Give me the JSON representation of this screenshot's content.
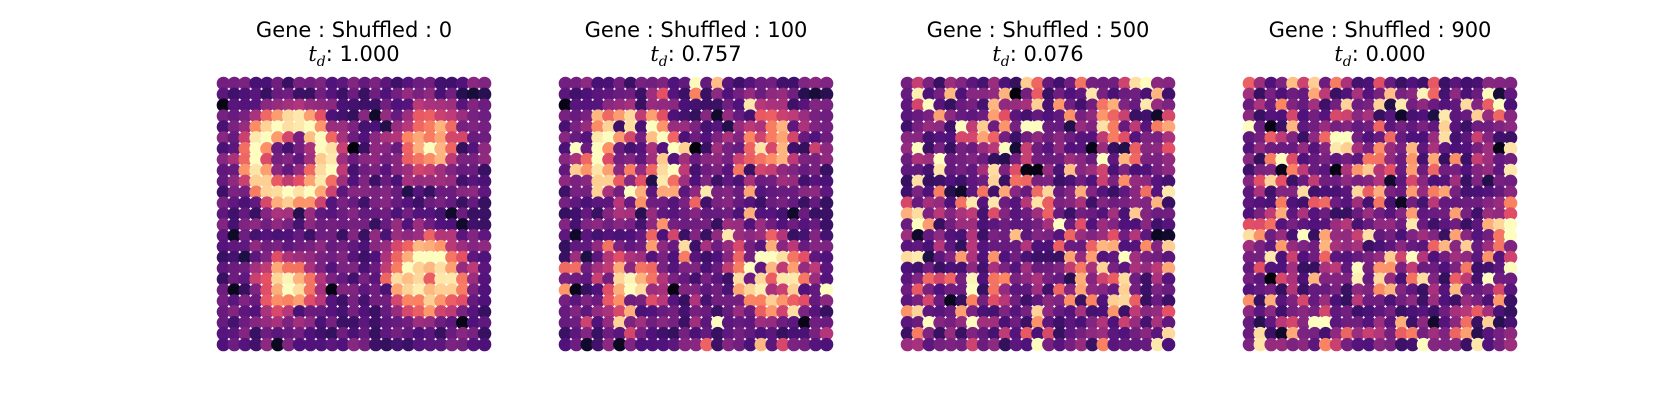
{
  "chart_data": [
    {
      "type": "scatter",
      "title": "Gene : Shuffled : 0",
      "td_label": "t",
      "td_sub": "d",
      "td_value": ": 1.000",
      "shuffled": 0,
      "grid_size": 25,
      "colormap": "magma"
    },
    {
      "type": "scatter",
      "title": "Gene : Shuffled : 100",
      "td_label": "t",
      "td_sub": "d",
      "td_value": ": 0.757",
      "shuffled": 100,
      "grid_size": 25,
      "colormap": "magma"
    },
    {
      "type": "scatter",
      "title": "Gene : Shuffled : 500",
      "td_label": "t",
      "td_sub": "d",
      "td_value": ": 0.076",
      "shuffled": 500,
      "grid_size": 25,
      "colormap": "magma"
    },
    {
      "type": "scatter",
      "title": "Gene : Shuffled : 900",
      "td_label": "t",
      "td_sub": "d",
      "td_value": ": 0.000",
      "shuffled": 900,
      "grid_size": 25,
      "colormap": "magma"
    }
  ]
}
